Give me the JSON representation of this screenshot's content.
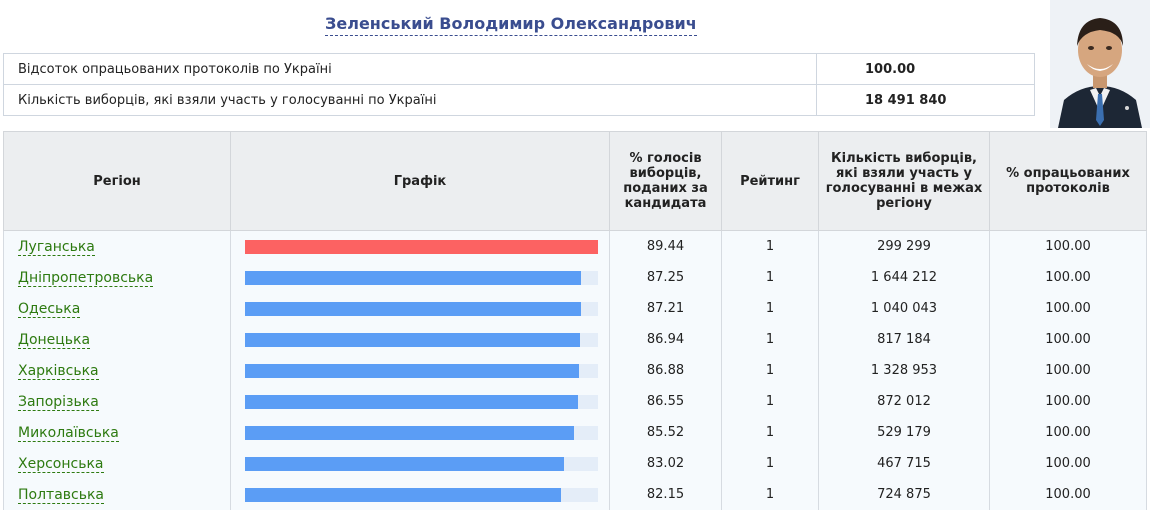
{
  "candidate": {
    "name": "Зеленський Володимир Олександрович"
  },
  "summary": {
    "rows": [
      {
        "label": "Відсоток опрацьованих протоколів по Україні",
        "value": "100.00"
      },
      {
        "label": "Кількість виборців, які взяли участь у голосуванні по Україні",
        "value": "18 491 840"
      }
    ]
  },
  "table": {
    "headers": {
      "region": "Регіон",
      "chart": "Графік",
      "percent": "% голосів виборців, поданих за кандидата",
      "rating": "Рейтинг",
      "voters": "Кількість виборців, які взяли участь у голосуванні в межах регіону",
      "processed": "% опрацьованих протоколів"
    },
    "rows": [
      {
        "region": "Луганська",
        "percent": "89.44",
        "rating": "1",
        "voters": "299 299",
        "processed": "100.00",
        "highlight": true
      },
      {
        "region": "Дніпропетровська",
        "percent": "87.25",
        "rating": "1",
        "voters": "1 644 212",
        "processed": "100.00",
        "highlight": false
      },
      {
        "region": "Одеська",
        "percent": "87.21",
        "rating": "1",
        "voters": "1 040 043",
        "processed": "100.00",
        "highlight": false
      },
      {
        "region": "Донецька",
        "percent": "86.94",
        "rating": "1",
        "voters": "817 184",
        "processed": "100.00",
        "highlight": false
      },
      {
        "region": "Харківська",
        "percent": "86.88",
        "rating": "1",
        "voters": "1 328 953",
        "processed": "100.00",
        "highlight": false
      },
      {
        "region": "Запорізька",
        "percent": "86.55",
        "rating": "1",
        "voters": "872 012",
        "processed": "100.00",
        "highlight": false
      },
      {
        "region": "Миколаївська",
        "percent": "85.52",
        "rating": "1",
        "voters": "529 179",
        "processed": "100.00",
        "highlight": false
      },
      {
        "region": "Херсонська",
        "percent": "83.02",
        "rating": "1",
        "voters": "467 715",
        "processed": "100.00",
        "highlight": false
      },
      {
        "region": "Полтавська",
        "percent": "82.15",
        "rating": "1",
        "voters": "724 875",
        "processed": "100.00",
        "highlight": false
      }
    ]
  },
  "colors": {
    "bar_top": "#fc6262",
    "bar_default": "#5b9df5",
    "bar_track": "#e4edf8",
    "link": "#2d7a10",
    "title": "#3a4d8f"
  }
}
